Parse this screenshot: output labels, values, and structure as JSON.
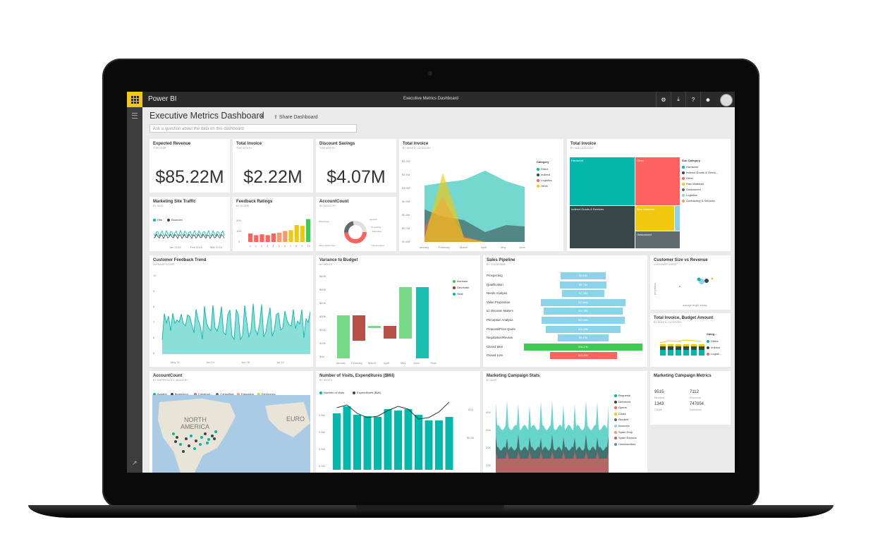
{
  "app": {
    "brand": "Power BI",
    "window_title": "Executive Metrics Dashboard"
  },
  "dashboard": {
    "title": "Executive Metrics Dashboard",
    "share_label": "Share Dashboard",
    "qa_placeholder": "Ask a question about the data on this dashboard"
  },
  "tiles": {
    "expected_revenue": {
      "title": "Expected Revenue",
      "subtitle": "THIS YEAR",
      "value": "$85.22M"
    },
    "total_invoice_kpi": {
      "title": "Total Invoice",
      "subtitle": "THIS MONTH",
      "value": "$2.22M"
    },
    "discount_savings": {
      "title": "Discount Savings",
      "subtitle": "THIS MONTH",
      "value": "$4.07M"
    },
    "total_invoice_area": {
      "title": "Total Invoice",
      "subtitle": "BY MONTH, CATEGORY",
      "legend_title": "Category",
      "legend": [
        "Direct",
        "Indirect",
        "Logistics",
        "Other"
      ],
      "yticks": [
        "$1.2M",
        "$1.1M",
        "$1.0M",
        "$0.9M",
        "$0.8M",
        "$0.7M",
        "$0.6M"
      ],
      "xticks": [
        "January",
        "February",
        "March",
        "April",
        "May",
        "June"
      ]
    },
    "total_invoice_treemap": {
      "title": "Total Invoice",
      "subtitle": "BY SUB CATEGORY",
      "blocks": [
        "Hardware",
        "Other",
        "Indirect Goods & Services",
        "Raw Materials",
        "Outsourced"
      ],
      "legend_title": "Sub Category",
      "legend": [
        "Hardware",
        "Indirect Goods & Servic...",
        "Other",
        "Raw Materials",
        "Outsourced",
        "Logistics",
        "Contracting & Services"
      ]
    },
    "site_traffic": {
      "title": "Marketing Site Traffic",
      "subtitle": "BY DATE",
      "legend": [
        "Hits",
        "Bounces"
      ],
      "xticks": [
        "Jan 2015",
        "Feb 2015",
        "Mar 2015"
      ]
    },
    "feedback_ratings": {
      "title": "Feedback Ratings",
      "subtitle": "BY SCORE",
      "yticks": [
        "200",
        "100",
        "0"
      ],
      "xticks": [
        "0",
        "1",
        "2",
        "3",
        "4",
        "5",
        "6",
        "7",
        "8",
        "9",
        "10"
      ]
    },
    "account_count_donut": {
      "title": "AccountCount",
      "subtitle": "BY INDUSTRY",
      "labels": [
        "Apparel",
        "Consulting",
        "Education",
        "Value Added Res...",
        "Warehouse",
        "Transportation"
      ]
    },
    "customer_feedback": {
      "title": "Customer Feedback Trend",
      "subtitle": "AVERAGE SCORE",
      "xticks": [
        "May 31",
        "Jun 14",
        "Jun 28",
        "Jul 12"
      ],
      "yticks": [
        "10",
        "9",
        "8",
        "7",
        "6",
        "5"
      ]
    },
    "variance": {
      "title": "Variance to Budget",
      "subtitle": "BY MONTH",
      "legend": [
        "Increase",
        "Decrease",
        "Total"
      ],
      "yticks": [
        "$60K",
        "$50K",
        "$40K",
        "$30K",
        "$20K",
        "$10K",
        "$0K"
      ],
      "xticks": [
        "January",
        "February",
        "March",
        "April",
        "May",
        "June",
        "Total"
      ]
    },
    "sales_pipeline": {
      "title": "Sales Pipeline",
      "subtitle": "BY STAGENAME",
      "stages": [
        "Prospecting",
        "Qualification",
        "Needs Analysis",
        "Value Proposition",
        "Id. Decision Makers",
        "Perception Analysis",
        "Proposal/Price Quote",
        "Negotiation/Review",
        "Closed Won",
        "Closed Lost"
      ],
      "values": [
        "$8.64M",
        "$8.71M",
        "$7.76M",
        "$17.86M",
        "$16.78M",
        "$17.46M",
        "$15.09M",
        "$9.47M",
        "$16.17M",
        "$13.20M"
      ]
    },
    "customer_size": {
      "title": "Customer Size vs Revenue",
      "subtitle": "CUSTOMER GROUP",
      "xlabel": "average length of stay",
      "ylabel": "per visitors"
    },
    "budget_amount": {
      "title": "Total Invoice, Budget Amount",
      "subtitle": "BY MONTH, CATEGORY",
      "legend_title": "Categ...",
      "legend": [
        "Direct",
        "Indirect",
        "Logisti..."
      ]
    },
    "account_map": {
      "title": "AccountCount",
      "subtitle": "BY SHIPPINGCITY, INDUSTRY",
      "legend": [
        "Apparel",
        "Biotechnol...",
        "Construct...",
        "Consulting",
        "Education",
        "Electronics"
      ],
      "map_labels": [
        "NORTH",
        "AMERICA",
        "EURO"
      ]
    },
    "visits": {
      "title": "Number of Visits, Expenditures ($Mil)",
      "subtitle": "BY MONTH",
      "legend": [
        "Number of Visits",
        "Expenditures ($Mil)"
      ],
      "yticks": [
        "0.8M",
        "0.6M",
        "0.4M",
        "0.2M"
      ],
      "y2ticks": [
        "$1K",
        "$0.5K"
      ]
    },
    "campaign_stats": {
      "title": "Marketing Campaign Stats",
      "subtitle": "BY DATE",
      "yticks": [
        "40K",
        "30K",
        "20K",
        "10K"
      ],
      "legend": [
        "Requests",
        "Delivered",
        "Opens",
        "Clicks",
        "Blocked",
        "Bounces",
        "Spam Drop",
        "Spam Reports",
        "Unsubscribes"
      ]
    },
    "campaign_metrics": {
      "title": "Marketing Campaign Metrics",
      "items": [
        {
          "value": "9515",
          "label": "Blocked"
        },
        {
          "value": "7112",
          "label": "Bounces"
        },
        {
          "value": "1343",
          "label": "Clicks"
        },
        {
          "value": "747054",
          "label": "Delivered"
        }
      ]
    }
  },
  "colors": {
    "teal": "#01b8aa",
    "dark": "#374649",
    "red": "#fd625e",
    "yellow": "#f2c80f",
    "gray": "#5f6b6d",
    "blue": "#8ad4eb",
    "orange": "#fe9666",
    "purple": "#a66999",
    "green": "#3dcb52",
    "brand_yellow": "#f2c811"
  }
}
